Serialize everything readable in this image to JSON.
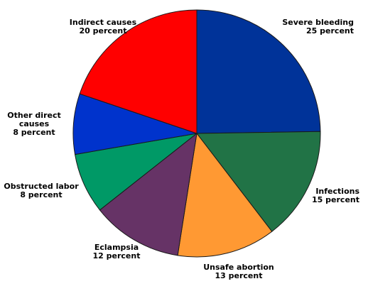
{
  "chart_data": {
    "type": "pie",
    "title": "",
    "slices": [
      {
        "id": "severe-bleeding",
        "label": [
          "Severe bleeding",
          "25 percent"
        ],
        "value": 25,
        "color": "#003399"
      },
      {
        "id": "infections",
        "label": [
          "Infections",
          "15 percent"
        ],
        "value": 15,
        "color": "#217346"
      },
      {
        "id": "unsafe-abortion",
        "label": [
          "Unsafe abortion",
          "13 percent"
        ],
        "value": 13,
        "color": "#FF9933"
      },
      {
        "id": "eclampsia",
        "label": [
          "Eclampsia",
          "12 percent"
        ],
        "value": 12,
        "color": "#663366"
      },
      {
        "id": "obstructed-labor",
        "label": [
          "Obstructed labor",
          "8 percent"
        ],
        "value": 8,
        "color": "#009966"
      },
      {
        "id": "other-direct-causes",
        "label": [
          "Other direct",
          "causes",
          "8 percent"
        ],
        "value": 8,
        "color": "#0033CC"
      },
      {
        "id": "indirect-causes",
        "label": [
          "Indirect causes",
          "20 percent"
        ],
        "value": 20,
        "color": "#FF0000"
      }
    ],
    "start_angle": "12 o'clock",
    "direction": "clockwise",
    "legend": "none"
  }
}
